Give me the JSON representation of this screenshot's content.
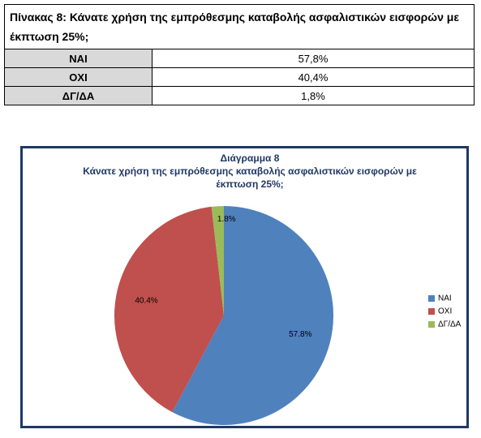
{
  "table": {
    "title": "Πίνακας 8: Κάνατε χρήση της εμπρόθεσμης καταβολής ασφαλιστικών εισφορών με έκπτωση 25%;",
    "rows": [
      [
        "ΝΑΙ",
        "57,8%"
      ],
      [
        "ΟΧΙ",
        "40,4%"
      ],
      [
        "ΔΓ/ΔΑ",
        "1,8%"
      ]
    ]
  },
  "chart_data": {
    "type": "pie",
    "title": "Διάγραμμα  8",
    "subtitle": "Κάνατε χρήση της εμπρόθεσμης καταβολής ασφαλιστικών εισφορών με έκπτωση 25%;",
    "categories": [
      "ΝΑΙ",
      "ΟΧΙ",
      "ΔΓ/ΔΑ"
    ],
    "values": [
      57.8,
      40.4,
      1.8
    ],
    "value_labels": [
      "57.8%",
      "40.4%",
      "1.8%"
    ],
    "colors": [
      "#4f81bd",
      "#c0504d",
      "#9bbb59"
    ],
    "legend": "right"
  }
}
